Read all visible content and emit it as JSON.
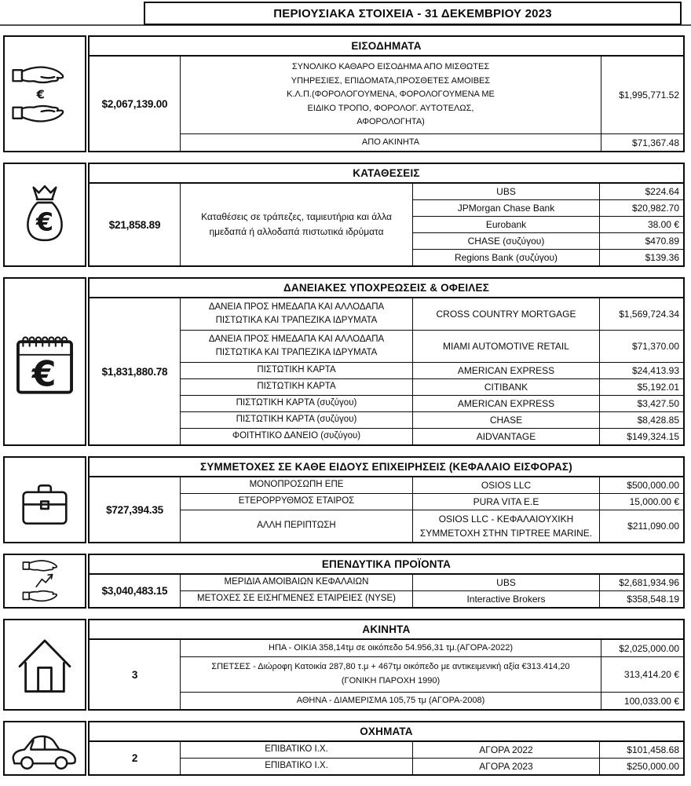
{
  "title": "ΠΕΡΙΟΥΣΙΑΚΑ ΣΤΟΙΧΕΙΑ - 31 ΔΕΚΕΜΒΡΙΟΥ 2023",
  "colors": {
    "border": "#0c0c0c",
    "background": "#ffffff",
    "title_rule": "#4f4f4f"
  },
  "sections": [
    {
      "name": "income",
      "icon": "giving-hands-euro-icon",
      "header": "ΕΙΣΟΔΗΜΑΤΑ",
      "total": "$2,067,139.00",
      "rows": [
        {
          "desc": "ΣΥΝΟΛΙΚΟ ΚΑΘΑΡΟ ΕΙΣΟΔΗΜΑ ΑΠΟ ΜΙΣΘΩΤΕΣ\nΥΠΗΡΕΣΙΕΣ, ΕΠΙΔΟΜΑΤΑ,ΠΡΟΣΘΕΤΕΣ ΑΜΟΙΒΕΣ\nΚ.Λ.Π.(ΦΟΡΟΛΟΓΟΥΜΕΝΑ, ΦΟΡΟΛΟΓΟΥΜΕΝΑ ΜΕ\nΕΙΔΙΚΟ ΤΡΟΠΟ, ΦΟΡΟΛΟΓ. ΑΥΤΟΤΕΛΩΣ,\nΑΦΟΡΟΛΟΓΗΤΑ)",
          "value": "$1,995,771.52"
        },
        {
          "desc": "ΑΠΟ ΑΚΙΝΗΤΑ",
          "value": "$71,367.48"
        }
      ]
    },
    {
      "name": "deposits",
      "icon": "money-bag-euro-icon",
      "header": "ΚΑΤΑΘΕΣΕΙΣ",
      "total": "$21,858.89",
      "merged_desc": "Καταθέσεις σε τράπεζες, ταμιευτήρια και άλλα ημεδαπά ή αλλοδαπά πιστωτικά ιδρύματα",
      "rows": [
        {
          "mid": "UBS",
          "value": "$224.64"
        },
        {
          "mid": "JPMorgan Chase Bank",
          "value": "$20,982.70"
        },
        {
          "mid": "Eurobank",
          "value": "38.00 €"
        },
        {
          "mid": "CHASE (συζύγου)",
          "value": "$470.89"
        },
        {
          "mid": "Regions Bank (συζύγου)",
          "value": "$139.36"
        }
      ]
    },
    {
      "name": "loans",
      "icon": "notepad-euro-icon",
      "header": "ΔΑΝΕΙΑΚΕΣ ΥΠΟΧΡΕΩΣΕΙΣ & ΟΦΕΙΛΕΣ",
      "total": "$1,831,880.78",
      "rows": [
        {
          "desc": "ΔΑΝΕΙΑ ΠΡΟΣ ΗΜΕΔΑΠΑ ΚΑΙ ΑΛΛΟΔΑΠΑ\nΠΙΣΤΩΤΙΚΑ ΚΑΙ ΤΡΑΠΕΖΙΚΑ ΙΔΡΥΜΑΤΑ",
          "mid": "CROSS COUNTRY MORTGAGE",
          "value": "$1,569,724.34"
        },
        {
          "desc": "ΔΑΝΕΙΑ ΠΡΟΣ ΗΜΕΔΑΠΑ ΚΑΙ ΑΛΛΟΔΑΠΑ\nΠΙΣΤΩΤΙΚΑ ΚΑΙ ΤΡΑΠΕΖΙΚΑ ΙΔΡΥΜΑΤΑ",
          "mid": "MIAMI AUTOMOTIVE RETAIL",
          "value": "$71,370.00"
        },
        {
          "desc": "ΠΙΣΤΩΤΙΚΗ ΚΑΡΤΑ",
          "mid": "AMERICAN EXPRESS",
          "value": "$24,413.93"
        },
        {
          "desc": "ΠΙΣΤΩΤΙΚΗ ΚΑΡΤΑ",
          "mid": "CITIBANK",
          "value": "$5,192.01"
        },
        {
          "desc": "ΠΙΣΤΩΤΙΚΗ ΚΑΡΤΑ (συζύγου)",
          "mid": "AMERICAN EXPRESS",
          "value": "$3,427.50"
        },
        {
          "desc": "ΠΙΣΤΩΤΙΚΗ ΚΑΡΤΑ (συζύγου)",
          "mid": "CHASE",
          "value": "$8,428.85"
        },
        {
          "desc": "ΦΟΙΤΗΤΙΚΟ ΔΑΝΕΙΟ (συζύγου)",
          "mid": "AIDVANTAGE",
          "value": "$149,324.15"
        }
      ]
    },
    {
      "name": "business-participations",
      "icon": "briefcase-icon",
      "header": "ΣΥΜΜΕΤΟΧΕΣ ΣΕ ΚΑΘΕ ΕΙΔΟΥΣ ΕΠΙΧΕΙΡΗΣΕΙΣ (ΚΕΦΑΛΑΙΟ ΕΙΣΦΟΡΑΣ)",
      "total": "$727,394.35",
      "rows": [
        {
          "desc": "ΜΟΝΟΠΡΟΣΩΠΗ ΕΠΕ",
          "mid": "OSIOS LLC",
          "value": "$500,000.00"
        },
        {
          "desc": "ΕΤΕΡΟΡΡΥΘΜΟΣ ΕΤΑΙΡΟΣ",
          "mid": "PURA VITA E.E",
          "value": "15,000.00 €"
        },
        {
          "desc": "ΑΛΛΗ ΠΕΡΙΠΤΩΣΗ",
          "mid": "OSIOS LLC - ΚΕΦΑΛΑΙΟΥΧΙΚΗ\nΣΥΜΜΕΤΟΧΗ ΣΤΗΝ TIPTREE MARINE.",
          "value": "$211,090.00"
        }
      ]
    },
    {
      "name": "investments",
      "icon": "hands-growth-arrow-icon",
      "header": "ΕΠΕΝΔΥΤΙΚΑ ΠΡΟΪΟΝΤΑ",
      "total": "$3,040,483.15",
      "rows": [
        {
          "desc": "ΜΕΡΙΔΙΑ ΑΜΟΙΒΑΙΩΝ ΚΕΦΑΛΑΙΩΝ",
          "mid": "UBS",
          "value": "$2,681,934.96"
        },
        {
          "desc": "ΜΕΤΟΧΕΣ ΣΕ ΕΙΣΗΓΜΕΝΕΣ ΕΤΑΙΡΕΙΕΣ (NYSE)",
          "mid": "Interactive Brokers",
          "value": "$358,548.19"
        }
      ]
    },
    {
      "name": "real-estate",
      "icon": "house-icon",
      "header": "ΑΚΙΝΗΤΑ",
      "total": "3",
      "rows": [
        {
          "desc": "ΗΠΑ - ΟΙΚΙΑ 358,14τμ σε οικόπεδο 54.956,31 τμ.(ΑΓΟΡΑ-2022)",
          "value": "$2,025,000.00"
        },
        {
          "desc": "ΣΠΕΤΣΕΣ - Διώροφη Κατοικία 287,80 τ.μ  + 467τμ οικόπεδο με αντικειμενική αξία €313.414,20\n(ΓΟΝΙΚΗ ΠΑΡΟΧΗ 1990)",
          "value": "313,414.20 €"
        },
        {
          "desc": "ΑΘΗΝΑ - ΔΙΑΜΕΡΙΣΜΑ 105,75 τμ (ΑΓΟΡΑ-2008)",
          "value": "100,033.00 €"
        }
      ]
    },
    {
      "name": "vehicles",
      "icon": "car-icon",
      "header": "ΟΧΗΜΑΤΑ",
      "total": "2",
      "rows": [
        {
          "desc": "ΕΠΙΒΑΤΙΚΟ Ι.Χ.",
          "mid": "ΑΓΟΡΑ 2022",
          "value": "$101,458.68"
        },
        {
          "desc": "ΕΠΙΒΑΤΙΚΟ Ι.Χ.",
          "mid": "ΑΓΟΡΑ 2023",
          "value": "$250,000.00"
        }
      ]
    }
  ]
}
